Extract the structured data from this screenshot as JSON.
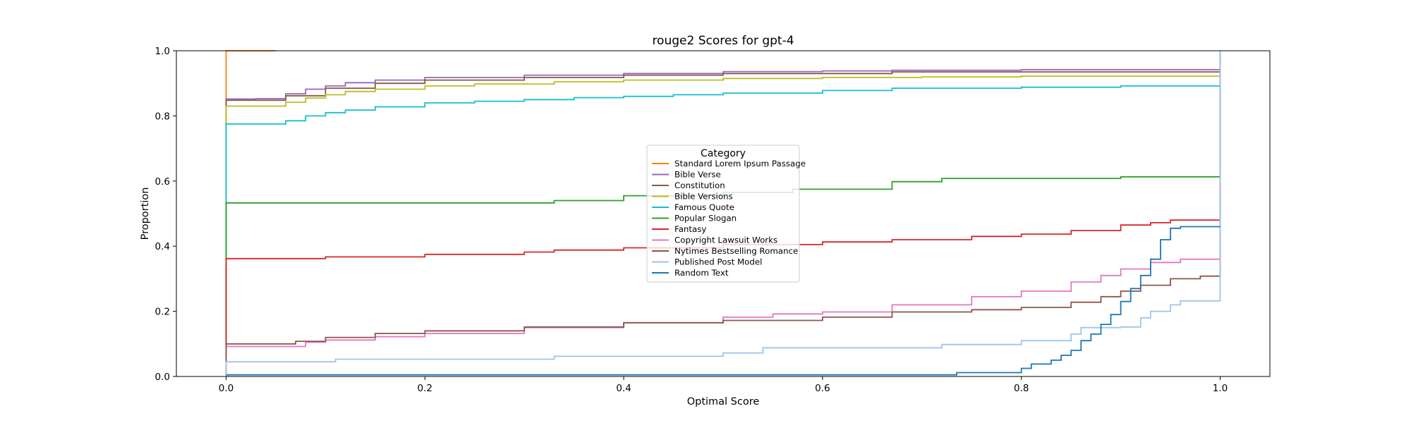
{
  "chart_data": {
    "type": "line",
    "title": "rouge2 Scores for gpt-4",
    "xlabel": "Optimal Score",
    "ylabel": "Proportion",
    "xlim": [
      -0.05,
      1.05
    ],
    "ylim": [
      0,
      1
    ],
    "xticks": [
      0,
      0.2,
      0.4,
      0.6,
      0.8,
      1
    ],
    "xtick_labels": [
      "0.0",
      "0.2",
      "0.4",
      "0.6",
      "0.8",
      "1.0"
    ],
    "yticks": [
      0,
      0.2,
      0.4,
      0.6,
      0.8,
      1
    ],
    "ytick_labels": [
      "0.0",
      "0.2",
      "0.4",
      "0.6",
      "0.8",
      "1.0"
    ],
    "grid": false,
    "legend": {
      "title": "Category",
      "placement": "center"
    },
    "series": [
      {
        "name": "Standard Lorem Ipsum Passage",
        "color": "#ff7f0e",
        "points": [
          [
            0,
            0
          ],
          [
            0,
            1
          ],
          [
            0.05,
            1
          ]
        ]
      },
      {
        "name": "Bible Verse",
        "color": "#9467bd",
        "points": [
          [
            0,
            0
          ],
          [
            0,
            0.852
          ],
          [
            0.03,
            0.853
          ],
          [
            0.06,
            0.868
          ],
          [
            0.08,
            0.882
          ],
          [
            0.1,
            0.892
          ],
          [
            0.12,
            0.902
          ],
          [
            0.15,
            0.91
          ],
          [
            0.2,
            0.918
          ],
          [
            0.3,
            0.925
          ],
          [
            0.4,
            0.93
          ],
          [
            0.5,
            0.936
          ],
          [
            0.6,
            0.938
          ],
          [
            0.67,
            0.94
          ],
          [
            0.8,
            0.942
          ],
          [
            1,
            0.943
          ],
          [
            1,
            1
          ]
        ]
      },
      {
        "name": "Constitution",
        "color": "#8c564b",
        "points": [
          [
            0,
            0
          ],
          [
            0,
            0.848
          ],
          [
            0.03,
            0.848
          ],
          [
            0.06,
            0.862
          ],
          [
            0.1,
            0.885
          ],
          [
            0.15,
            0.9
          ],
          [
            0.2,
            0.91
          ],
          [
            0.3,
            0.918
          ],
          [
            0.4,
            0.925
          ],
          [
            0.5,
            0.93
          ],
          [
            0.67,
            0.935
          ],
          [
            1,
            0.94
          ],
          [
            1,
            1
          ]
        ]
      },
      {
        "name": "Bible Versions",
        "color": "#bcbd22",
        "points": [
          [
            0,
            0
          ],
          [
            0,
            0.83
          ],
          [
            0.03,
            0.83
          ],
          [
            0.06,
            0.842
          ],
          [
            0.08,
            0.855
          ],
          [
            0.1,
            0.865
          ],
          [
            0.12,
            0.875
          ],
          [
            0.15,
            0.882
          ],
          [
            0.2,
            0.892
          ],
          [
            0.25,
            0.898
          ],
          [
            0.33,
            0.905
          ],
          [
            0.4,
            0.91
          ],
          [
            0.5,
            0.915
          ],
          [
            0.6,
            0.918
          ],
          [
            0.7,
            0.92
          ],
          [
            0.8,
            0.922
          ],
          [
            1,
            0.925
          ],
          [
            1,
            1
          ]
        ]
      },
      {
        "name": "Famous Quote",
        "color": "#17becf",
        "points": [
          [
            0,
            0
          ],
          [
            0,
            0.775
          ],
          [
            0.04,
            0.775
          ],
          [
            0.06,
            0.785
          ],
          [
            0.08,
            0.8
          ],
          [
            0.1,
            0.81
          ],
          [
            0.12,
            0.818
          ],
          [
            0.15,
            0.828
          ],
          [
            0.2,
            0.84
          ],
          [
            0.25,
            0.845
          ],
          [
            0.3,
            0.85
          ],
          [
            0.35,
            0.856
          ],
          [
            0.4,
            0.86
          ],
          [
            0.45,
            0.865
          ],
          [
            0.5,
            0.87
          ],
          [
            0.6,
            0.878
          ],
          [
            0.67,
            0.885
          ],
          [
            0.8,
            0.888
          ],
          [
            0.9,
            0.892
          ],
          [
            1,
            0.895
          ],
          [
            1,
            1
          ]
        ]
      },
      {
        "name": "Popular Slogan",
        "color": "#2ca02c",
        "points": [
          [
            0,
            0
          ],
          [
            0,
            0.533
          ],
          [
            0.33,
            0.533
          ],
          [
            0.33,
            0.54
          ],
          [
            0.4,
            0.54
          ],
          [
            0.4,
            0.555
          ],
          [
            0.5,
            0.555
          ],
          [
            0.5,
            0.565
          ],
          [
            0.57,
            0.565
          ],
          [
            0.57,
            0.575
          ],
          [
            0.67,
            0.575
          ],
          [
            0.67,
            0.598
          ],
          [
            0.72,
            0.598
          ],
          [
            0.72,
            0.608
          ],
          [
            0.9,
            0.608
          ],
          [
            0.9,
            0.613
          ],
          [
            1,
            0.613
          ],
          [
            1,
            1
          ]
        ]
      },
      {
        "name": "Fantasy",
        "color": "#d62728",
        "points": [
          [
            0,
            0
          ],
          [
            0,
            0.362
          ],
          [
            0.1,
            0.362
          ],
          [
            0.1,
            0.367
          ],
          [
            0.2,
            0.375
          ],
          [
            0.3,
            0.382
          ],
          [
            0.33,
            0.388
          ],
          [
            0.4,
            0.395
          ],
          [
            0.5,
            0.405
          ],
          [
            0.6,
            0.413
          ],
          [
            0.67,
            0.42
          ],
          [
            0.75,
            0.43
          ],
          [
            0.8,
            0.437
          ],
          [
            0.85,
            0.448
          ],
          [
            0.9,
            0.465
          ],
          [
            0.93,
            0.472
          ],
          [
            0.95,
            0.48
          ],
          [
            1,
            0.48
          ],
          [
            1,
            1
          ]
        ]
      },
      {
        "name": "Copyright Lawsuit Works",
        "color": "#e377c2",
        "points": [
          [
            0,
            0
          ],
          [
            0,
            0.092
          ],
          [
            0.05,
            0.092
          ],
          [
            0.08,
            0.105
          ],
          [
            0.1,
            0.112
          ],
          [
            0.15,
            0.122
          ],
          [
            0.2,
            0.132
          ],
          [
            0.3,
            0.15
          ],
          [
            0.4,
            0.165
          ],
          [
            0.5,
            0.182
          ],
          [
            0.55,
            0.192
          ],
          [
            0.6,
            0.198
          ],
          [
            0.67,
            0.205
          ],
          [
            0.67,
            0.22
          ],
          [
            0.75,
            0.245
          ],
          [
            0.8,
            0.262
          ],
          [
            0.85,
            0.29
          ],
          [
            0.88,
            0.31
          ],
          [
            0.9,
            0.33
          ],
          [
            0.93,
            0.35
          ],
          [
            0.96,
            0.36
          ],
          [
            1,
            0.362
          ],
          [
            1,
            1
          ]
        ]
      },
      {
        "name": "Nytimes Bestselling Romance",
        "color": "#8c564b",
        "points": [
          [
            0,
            0
          ],
          [
            0,
            0.1
          ],
          [
            0.04,
            0.1
          ],
          [
            0.07,
            0.108
          ],
          [
            0.1,
            0.12
          ],
          [
            0.15,
            0.132
          ],
          [
            0.2,
            0.14
          ],
          [
            0.3,
            0.152
          ],
          [
            0.4,
            0.165
          ],
          [
            0.5,
            0.172
          ],
          [
            0.6,
            0.182
          ],
          [
            0.67,
            0.19
          ],
          [
            0.67,
            0.198
          ],
          [
            0.75,
            0.205
          ],
          [
            0.8,
            0.212
          ],
          [
            0.85,
            0.228
          ],
          [
            0.88,
            0.245
          ],
          [
            0.9,
            0.262
          ],
          [
            0.92,
            0.28
          ],
          [
            0.95,
            0.3
          ],
          [
            0.98,
            0.308
          ],
          [
            1,
            0.308
          ],
          [
            1,
            1
          ]
        ]
      },
      {
        "name": "Published Post Model",
        "color": "#9ec5ec",
        "points": [
          [
            0,
            0
          ],
          [
            0,
            0.045
          ],
          [
            0.11,
            0.045
          ],
          [
            0.11,
            0.053
          ],
          [
            0.33,
            0.053
          ],
          [
            0.33,
            0.062
          ],
          [
            0.5,
            0.062
          ],
          [
            0.5,
            0.072
          ],
          [
            0.54,
            0.072
          ],
          [
            0.54,
            0.088
          ],
          [
            0.72,
            0.088
          ],
          [
            0.72,
            0.098
          ],
          [
            0.8,
            0.098
          ],
          [
            0.8,
            0.11
          ],
          [
            0.85,
            0.13
          ],
          [
            0.86,
            0.15
          ],
          [
            0.9,
            0.152
          ],
          [
            0.92,
            0.18
          ],
          [
            0.93,
            0.2
          ],
          [
            0.95,
            0.22
          ],
          [
            0.96,
            0.232
          ],
          [
            1,
            0.232
          ],
          [
            1,
            1
          ]
        ]
      },
      {
        "name": "Random Text",
        "color": "#1f77b4",
        "points": [
          [
            0,
            0.005
          ],
          [
            0.735,
            0.005
          ],
          [
            0.735,
            0.012
          ],
          [
            0.78,
            0.012
          ],
          [
            0.8,
            0.025
          ],
          [
            0.81,
            0.038
          ],
          [
            0.83,
            0.05
          ],
          [
            0.84,
            0.065
          ],
          [
            0.85,
            0.08
          ],
          [
            0.86,
            0.11
          ],
          [
            0.87,
            0.13
          ],
          [
            0.88,
            0.16
          ],
          [
            0.89,
            0.19
          ],
          [
            0.9,
            0.23
          ],
          [
            0.91,
            0.27
          ],
          [
            0.92,
            0.31
          ],
          [
            0.93,
            0.36
          ],
          [
            0.94,
            0.42
          ],
          [
            0.95,
            0.455
          ],
          [
            0.96,
            0.46
          ],
          [
            1,
            0.46
          ]
        ]
      }
    ]
  }
}
